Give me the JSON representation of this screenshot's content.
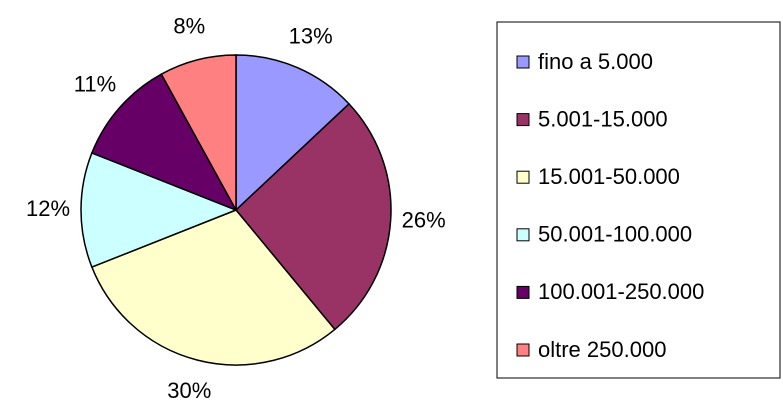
{
  "chart_data": {
    "type": "pie",
    "categories": [
      "fino a 5.000",
      "5.001-15.000",
      "15.001-50.000",
      "50.001-100.000",
      "100.001-250.000",
      "oltre 250.000"
    ],
    "values": [
      13,
      26,
      30,
      12,
      11,
      8
    ],
    "value_labels": [
      "13%",
      "26%",
      "30%",
      "12%",
      "11%",
      "8%"
    ],
    "colors": [
      "#9999ff",
      "#993366",
      "#ffffcc",
      "#ccffff",
      "#660066",
      "#ff8080"
    ],
    "legend": "right"
  }
}
